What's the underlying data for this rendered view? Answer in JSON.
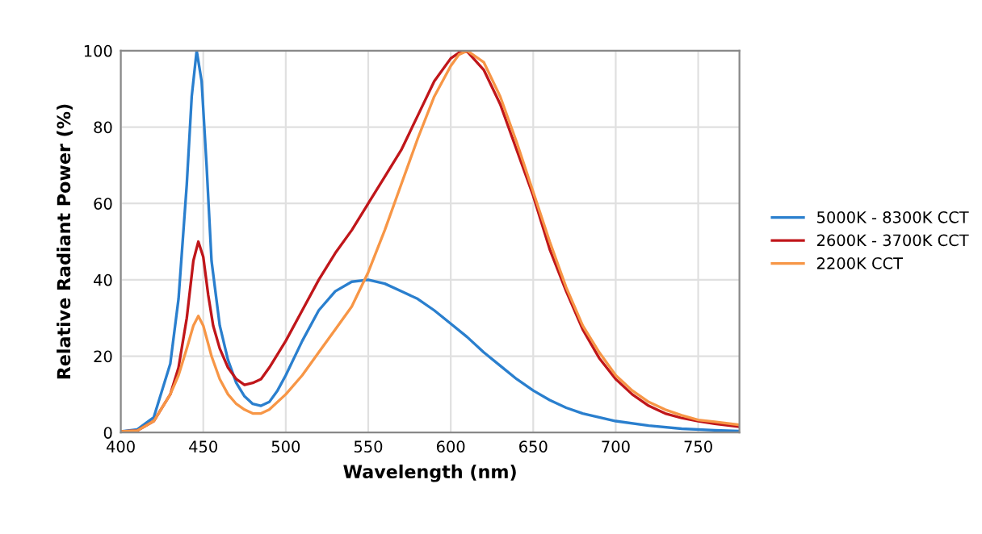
{
  "chart_data": {
    "type": "line",
    "xlabel": "Wavelength (nm)",
    "ylabel": "Relative Radiant Power (%)",
    "xlim": [
      400,
      775
    ],
    "xticks": [
      400,
      450,
      500,
      550,
      600,
      650,
      700,
      750
    ],
    "ylim": [
      0,
      100
    ],
    "yticks": [
      0,
      20,
      40,
      60,
      80,
      100
    ],
    "grid": true,
    "legend": "right",
    "marker": "none",
    "line_style": "solid",
    "series": [
      {
        "name": "5000K - 8300K CCT",
        "color": "#2a7fce",
        "x": [
          400,
          410,
          420,
          430,
          435,
          440,
          443,
          446,
          449,
          452,
          455,
          460,
          465,
          470,
          475,
          480,
          485,
          490,
          495,
          500,
          510,
          520,
          530,
          540,
          550,
          560,
          570,
          580,
          590,
          600,
          610,
          620,
          630,
          640,
          650,
          660,
          670,
          680,
          690,
          700,
          720,
          740,
          760,
          775
        ],
        "values": [
          0.3,
          0.8,
          4,
          18,
          35,
          65,
          88,
          100,
          92,
          70,
          45,
          28,
          19,
          13,
          9.5,
          7.5,
          7,
          8,
          11,
          15,
          24,
          32,
          37,
          39.5,
          40,
          39,
          37,
          35,
          32,
          28.5,
          25,
          21,
          17.5,
          14,
          11,
          8.5,
          6.5,
          5,
          4,
          3,
          1.8,
          1,
          0.6,
          0.4
        ]
      },
      {
        "name": "2600K - 3700K CCT",
        "color": "#c0161a",
        "x": [
          400,
          410,
          420,
          430,
          435,
          440,
          444,
          447,
          450,
          453,
          456,
          460,
          465,
          470,
          475,
          480,
          485,
          490,
          500,
          510,
          520,
          530,
          540,
          550,
          560,
          570,
          580,
          590,
          600,
          605,
          610,
          620,
          630,
          640,
          650,
          660,
          670,
          680,
          690,
          700,
          710,
          720,
          730,
          740,
          750,
          760,
          775
        ],
        "values": [
          0.3,
          0.5,
          3,
          10,
          17,
          30,
          45,
          50,
          46,
          36,
          28,
          22,
          17,
          14,
          12.5,
          13,
          14,
          17,
          24,
          32,
          40,
          47,
          53,
          60,
          67,
          74,
          83,
          92,
          98,
          99.5,
          99.8,
          95,
          86,
          74,
          62,
          48,
          37,
          27,
          19.5,
          14,
          10,
          7,
          5,
          3.8,
          3,
          2.3,
          1.5
        ]
      },
      {
        "name": "2200K CCT",
        "color": "#f79646",
        "x": [
          400,
          410,
          420,
          430,
          435,
          440,
          444,
          447,
          450,
          455,
          460,
          465,
          470,
          475,
          480,
          485,
          490,
          500,
          510,
          520,
          530,
          540,
          550,
          560,
          570,
          580,
          590,
          600,
          605,
          610,
          620,
          630,
          640,
          650,
          660,
          670,
          680,
          690,
          700,
          710,
          720,
          730,
          740,
          750,
          760,
          775
        ],
        "values": [
          0.3,
          0.5,
          3,
          10,
          15,
          22,
          28,
          30.5,
          28,
          20,
          14,
          10,
          7.5,
          6,
          5,
          5,
          6,
          10,
          15,
          21,
          27,
          33,
          42,
          53,
          65,
          77,
          88,
          96,
          99,
          100,
          97,
          88,
          76,
          63,
          50,
          38,
          28,
          21,
          15,
          11,
          8,
          6,
          4.5,
          3.3,
          2.8,
          2
        ]
      }
    ]
  }
}
